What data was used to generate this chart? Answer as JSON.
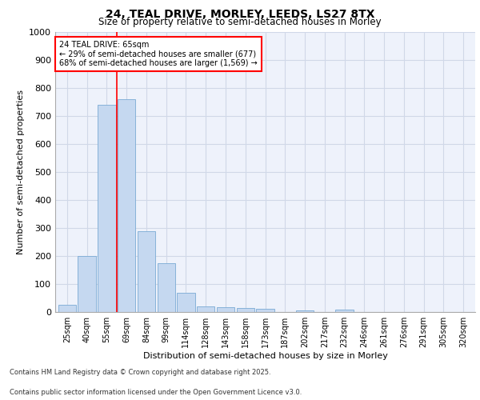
{
  "title_line1": "24, TEAL DRIVE, MORLEY, LEEDS, LS27 8TX",
  "title_line2": "Size of property relative to semi-detached houses in Morley",
  "xlabel": "Distribution of semi-detached houses by size in Morley",
  "ylabel": "Number of semi-detached properties",
  "categories": [
    "25sqm",
    "40sqm",
    "55sqm",
    "69sqm",
    "84sqm",
    "99sqm",
    "114sqm",
    "128sqm",
    "143sqm",
    "158sqm",
    "173sqm",
    "187sqm",
    "202sqm",
    "217sqm",
    "232sqm",
    "246sqm",
    "261sqm",
    "276sqm",
    "291sqm",
    "305sqm",
    "320sqm"
  ],
  "values": [
    25,
    200,
    740,
    760,
    290,
    175,
    68,
    20,
    18,
    13,
    12,
    0,
    6,
    0,
    8,
    0,
    0,
    0,
    0,
    0,
    0
  ],
  "bar_color": "#c5d8f0",
  "bar_edge_color": "#7aaad4",
  "grid_color": "#d0d8e8",
  "vline_x": 2.5,
  "vline_color": "red",
  "annotation_title": "24 TEAL DRIVE: 65sqm",
  "annotation_line1": "← 29% of semi-detached houses are smaller (677)",
  "annotation_line2": "68% of semi-detached houses are larger (1,569) →",
  "annotation_box_color": "red",
  "ylim": [
    0,
    1000
  ],
  "yticks": [
    0,
    100,
    200,
    300,
    400,
    500,
    600,
    700,
    800,
    900,
    1000
  ],
  "footer_line1": "Contains HM Land Registry data © Crown copyright and database right 2025.",
  "footer_line2": "Contains public sector information licensed under the Open Government Licence v3.0.",
  "bg_color": "#eef2fb"
}
